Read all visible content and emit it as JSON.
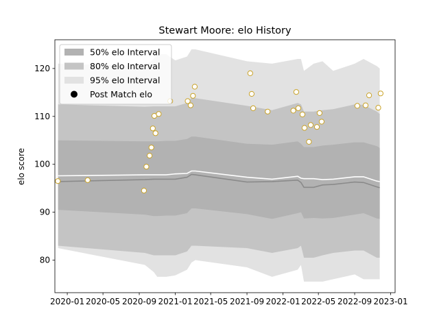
{
  "chart_data": {
    "type": "area",
    "title": "Stewart Moore: elo History",
    "xlabel": "",
    "ylabel": "elo score",
    "xlim": [
      "2019-11-20",
      "2023-01-16"
    ],
    "ylim": [
      73.2,
      126
    ],
    "x_ticks": [
      "2020-01",
      "2020-05",
      "2020-09",
      "2021-01",
      "2021-05",
      "2021-09",
      "2022-01",
      "2022-05",
      "2022-09",
      "2023-01"
    ],
    "y_ticks": [
      80,
      90,
      100,
      110,
      120
    ],
    "legend": {
      "placement": "top-left",
      "entries": [
        "50% elo Interval",
        "80% elo Interval",
        "95% elo Interval",
        "Post Match elo"
      ]
    },
    "colors": {
      "band95": "#e2e2e2",
      "band80": "#c4c4c4",
      "band50": "#b2b2b2",
      "median_line": "#8a8a8a",
      "mean_line": "#ffffff",
      "point_edge": "#c9a227",
      "point_fill": "#ffffff"
    },
    "bands": {
      "x": [
        "2019-12-01",
        "2020-09-20",
        "2020-10-20",
        "2020-11-01",
        "2020-12-01",
        "2021-01-01",
        "2021-02-10",
        "2021-02-25",
        "2021-03-10",
        "2021-09-01",
        "2021-11-25",
        "2022-02-20",
        "2022-03-03",
        "2022-03-13",
        "2022-04-15",
        "2022-05-15",
        "2022-06-20",
        "2022-09-01",
        "2022-10-01",
        "2022-11-15",
        "2022-11-25"
      ],
      "p025": [
        82.5,
        79.0,
        77.5,
        76.5,
        76.5,
        76.8,
        78.0,
        79.5,
        80.0,
        78.5,
        76.5,
        78.0,
        79.0,
        75.5,
        75.5,
        75.5,
        76.0,
        77.0,
        76.0,
        76.0,
        76.0
      ],
      "p10": [
        83.0,
        81.5,
        81.0,
        81.0,
        81.0,
        81.0,
        81.8,
        83.0,
        83.0,
        82.5,
        81.5,
        82.5,
        83.0,
        80.5,
        80.5,
        81.0,
        81.5,
        82.0,
        82.0,
        80.5,
        80.5
      ],
      "p25": [
        90.5,
        89.5,
        89.2,
        89.2,
        89.3,
        89.3,
        89.8,
        90.8,
        90.8,
        89.6,
        88.6,
        89.8,
        90.0,
        88.7,
        88.8,
        88.7,
        88.8,
        89.5,
        89.8,
        88.7,
        88.6
      ],
      "median": [
        96.4,
        96.8,
        96.9,
        96.9,
        96.9,
        96.9,
        97.3,
        97.9,
        97.8,
        96.3,
        96.4,
        96.7,
        96.2,
        95.2,
        95.2,
        95.7,
        95.8,
        96.3,
        96.2,
        95.3,
        95.1
      ],
      "mean": [
        97.6,
        97.8,
        97.8,
        97.8,
        97.8,
        98.0,
        98.1,
        98.6,
        98.6,
        97.3,
        96.9,
        97.5,
        97.1,
        97.0,
        97.0,
        96.8,
        96.9,
        97.4,
        97.4,
        96.5,
        96.4
      ],
      "p75": [
        105.0,
        104.8,
        104.8,
        104.8,
        104.9,
        104.9,
        105.3,
        105.8,
        105.8,
        104.3,
        104.1,
        104.8,
        104.3,
        103.6,
        103.6,
        103.9,
        104.1,
        104.6,
        104.6,
        103.8,
        103.4
      ],
      "p90": [
        112.5,
        112.0,
        112.1,
        112.1,
        112.1,
        112.1,
        112.8,
        113.9,
        113.8,
        112.2,
        111.3,
        112.8,
        112.5,
        111.0,
        111.0,
        111.3,
        111.5,
        112.5,
        112.4,
        111.0,
        110.5
      ],
      "p975": [
        121.0,
        120.5,
        122.0,
        123.0,
        123.0,
        121.7,
        122.5,
        124.0,
        124.0,
        121.5,
        121.0,
        122.0,
        122.0,
        119.5,
        121.0,
        121.5,
        119.5,
        121.0,
        122.0,
        120.5,
        120.0
      ]
    },
    "points": [
      {
        "x": "2019-11-30",
        "y": 96.5
      },
      {
        "x": "2020-03-10",
        "y": 96.7
      },
      {
        "x": "2020-09-17",
        "y": 94.5
      },
      {
        "x": "2020-09-25",
        "y": 99.5
      },
      {
        "x": "2020-10-06",
        "y": 101.8
      },
      {
        "x": "2020-10-12",
        "y": 103.5
      },
      {
        "x": "2020-10-17",
        "y": 107.5
      },
      {
        "x": "2020-10-22",
        "y": 110.1
      },
      {
        "x": "2020-10-26",
        "y": 106.5
      },
      {
        "x": "2020-11-06",
        "y": 110.5
      },
      {
        "x": "2020-12-15",
        "y": 113.2
      },
      {
        "x": "2021-02-12",
        "y": 113.2
      },
      {
        "x": "2021-02-22",
        "y": 112.3
      },
      {
        "x": "2021-03-02",
        "y": 114.3
      },
      {
        "x": "2021-03-08",
        "y": 116.2
      },
      {
        "x": "2021-09-12",
        "y": 119.0
      },
      {
        "x": "2021-09-17",
        "y": 114.7
      },
      {
        "x": "2021-09-22",
        "y": 111.7
      },
      {
        "x": "2021-11-10",
        "y": 111.0
      },
      {
        "x": "2022-02-05",
        "y": 111.2
      },
      {
        "x": "2022-02-15",
        "y": 115.1
      },
      {
        "x": "2022-02-22",
        "y": 111.7
      },
      {
        "x": "2022-03-08",
        "y": 110.4
      },
      {
        "x": "2022-03-15",
        "y": 107.6
      },
      {
        "x": "2022-03-30",
        "y": 104.7
      },
      {
        "x": "2022-04-05",
        "y": 108.2
      },
      {
        "x": "2022-04-26",
        "y": 107.8
      },
      {
        "x": "2022-05-05",
        "y": 110.7
      },
      {
        "x": "2022-05-12",
        "y": 108.9
      },
      {
        "x": "2022-09-10",
        "y": 112.2
      },
      {
        "x": "2022-10-08",
        "y": 112.3
      },
      {
        "x": "2022-10-20",
        "y": 114.4
      },
      {
        "x": "2022-11-20",
        "y": 111.8
      },
      {
        "x": "2022-11-28",
        "y": 114.8
      }
    ]
  }
}
